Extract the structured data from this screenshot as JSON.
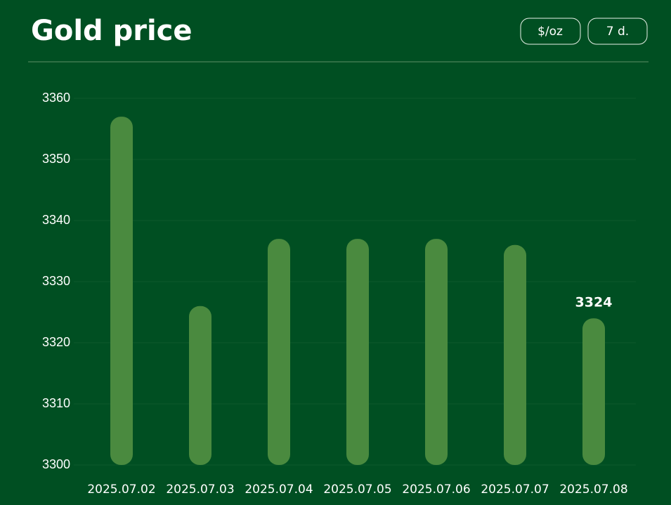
{
  "header": {
    "title": "Gold price",
    "controls": [
      "$/oz",
      "7 d."
    ]
  },
  "chart_data": {
    "type": "bar",
    "categories": [
      "2025.07.02",
      "2025.07.03",
      "2025.07.04",
      "2025.07.05",
      "2025.07.06",
      "2025.07.07",
      "2025.07.08"
    ],
    "values": [
      3357,
      3326,
      3337,
      3337,
      3337,
      3336,
      3324
    ],
    "color": "#4a8a3f",
    "ylim": [
      3300,
      3360
    ],
    "yticks": [
      3300,
      3310,
      3320,
      3330,
      3340,
      3350,
      3360
    ],
    "grid": true
  }
}
